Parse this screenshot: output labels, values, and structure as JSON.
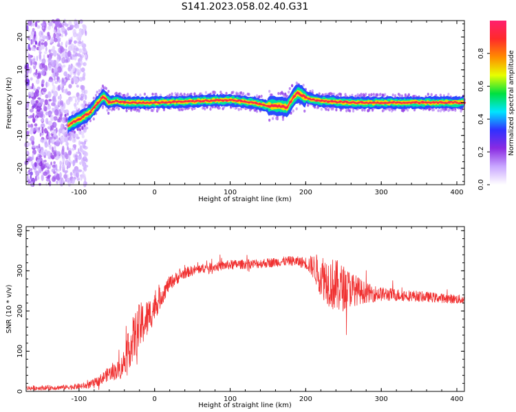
{
  "title": "S141.2023.058.02.40.G31",
  "chart_data": [
    {
      "type": "heatmap",
      "xlabel": "Height of straight line (km)",
      "ylabel": "Frequency (Hz)",
      "xlim": [
        -170,
        410
      ],
      "ylim": [
        -25,
        25
      ],
      "x_ticks": [
        -100,
        0,
        100,
        200,
        300,
        400
      ],
      "x_tick_labels": [
        "-100",
        "0",
        "100",
        "200",
        "300",
        "400"
      ],
      "y_ticks": [
        -20,
        -10,
        0,
        10,
        20
      ],
      "y_tick_labels": [
        "-20",
        "-10",
        "0",
        "10",
        "20"
      ],
      "colorbar": {
        "label": "Normalized spectral amplitude",
        "range": [
          0,
          1
        ],
        "ticks": [
          0.0,
          0.2,
          0.4,
          0.6,
          0.8
        ],
        "tick_labels": [
          "0.0",
          "0.2",
          "0.4",
          "0.6",
          "0.8"
        ],
        "colormap_stops": [
          "#ffffff",
          "#c9a7ff",
          "#8a2be2",
          "#3030ff",
          "#00e5ff",
          "#00e040",
          "#e8ff00",
          "#ff8c00",
          "#ff2a2a",
          "#ff1f6e"
        ]
      },
      "ridge_centerline": {
        "x": [
          -115,
          -100,
          -85,
          -75,
          -68,
          -60,
          -50,
          -40,
          0,
          60,
          100,
          130,
          150,
          165,
          175,
          185,
          190,
          200,
          220,
          260,
          320,
          410
        ],
        "y": [
          -7,
          -5,
          -3,
          0,
          2,
          0,
          0.5,
          0,
          0,
          0.5,
          0.8,
          0,
          -1,
          -1,
          -1.5,
          2,
          3,
          1.5,
          0.5,
          0,
          0,
          0
        ]
      },
      "noise_region_x": [
        -170,
        -90
      ]
    },
    {
      "type": "line",
      "xlabel": "Height of straight line (km)",
      "ylabel": "SNR (10 * v/v)",
      "xlim": [
        -170,
        410
      ],
      "ylim": [
        0,
        410
      ],
      "x_ticks": [
        -100,
        0,
        100,
        200,
        300,
        400
      ],
      "x_tick_labels": [
        "-100",
        "0",
        "100",
        "200",
        "300",
        "400"
      ],
      "y_ticks": [
        0,
        100,
        200,
        300,
        400
      ],
      "y_tick_labels": [
        "0",
        "100",
        "200",
        "300",
        "400"
      ],
      "line_color": "#f03030",
      "envelope": {
        "x": [
          -170,
          -120,
          -90,
          -75,
          -60,
          -45,
          -35,
          -28,
          -20,
          -10,
          0,
          10,
          20,
          40,
          60,
          100,
          140,
          180,
          200,
          210,
          220,
          240,
          260,
          280,
          300,
          340,
          380,
          410
        ],
        "mean": [
          8,
          10,
          14,
          25,
          45,
          55,
          100,
          130,
          160,
          180,
          210,
          240,
          270,
          295,
          305,
          315,
          318,
          325,
          320,
          310,
          290,
          260,
          255,
          245,
          242,
          238,
          232,
          228
        ],
        "spread": [
          6,
          6,
          8,
          12,
          18,
          25,
          45,
          60,
          60,
          50,
          35,
          25,
          18,
          14,
          12,
          12,
          12,
          12,
          15,
          30,
          55,
          70,
          45,
          25,
          18,
          14,
          12,
          12
        ]
      }
    }
  ]
}
